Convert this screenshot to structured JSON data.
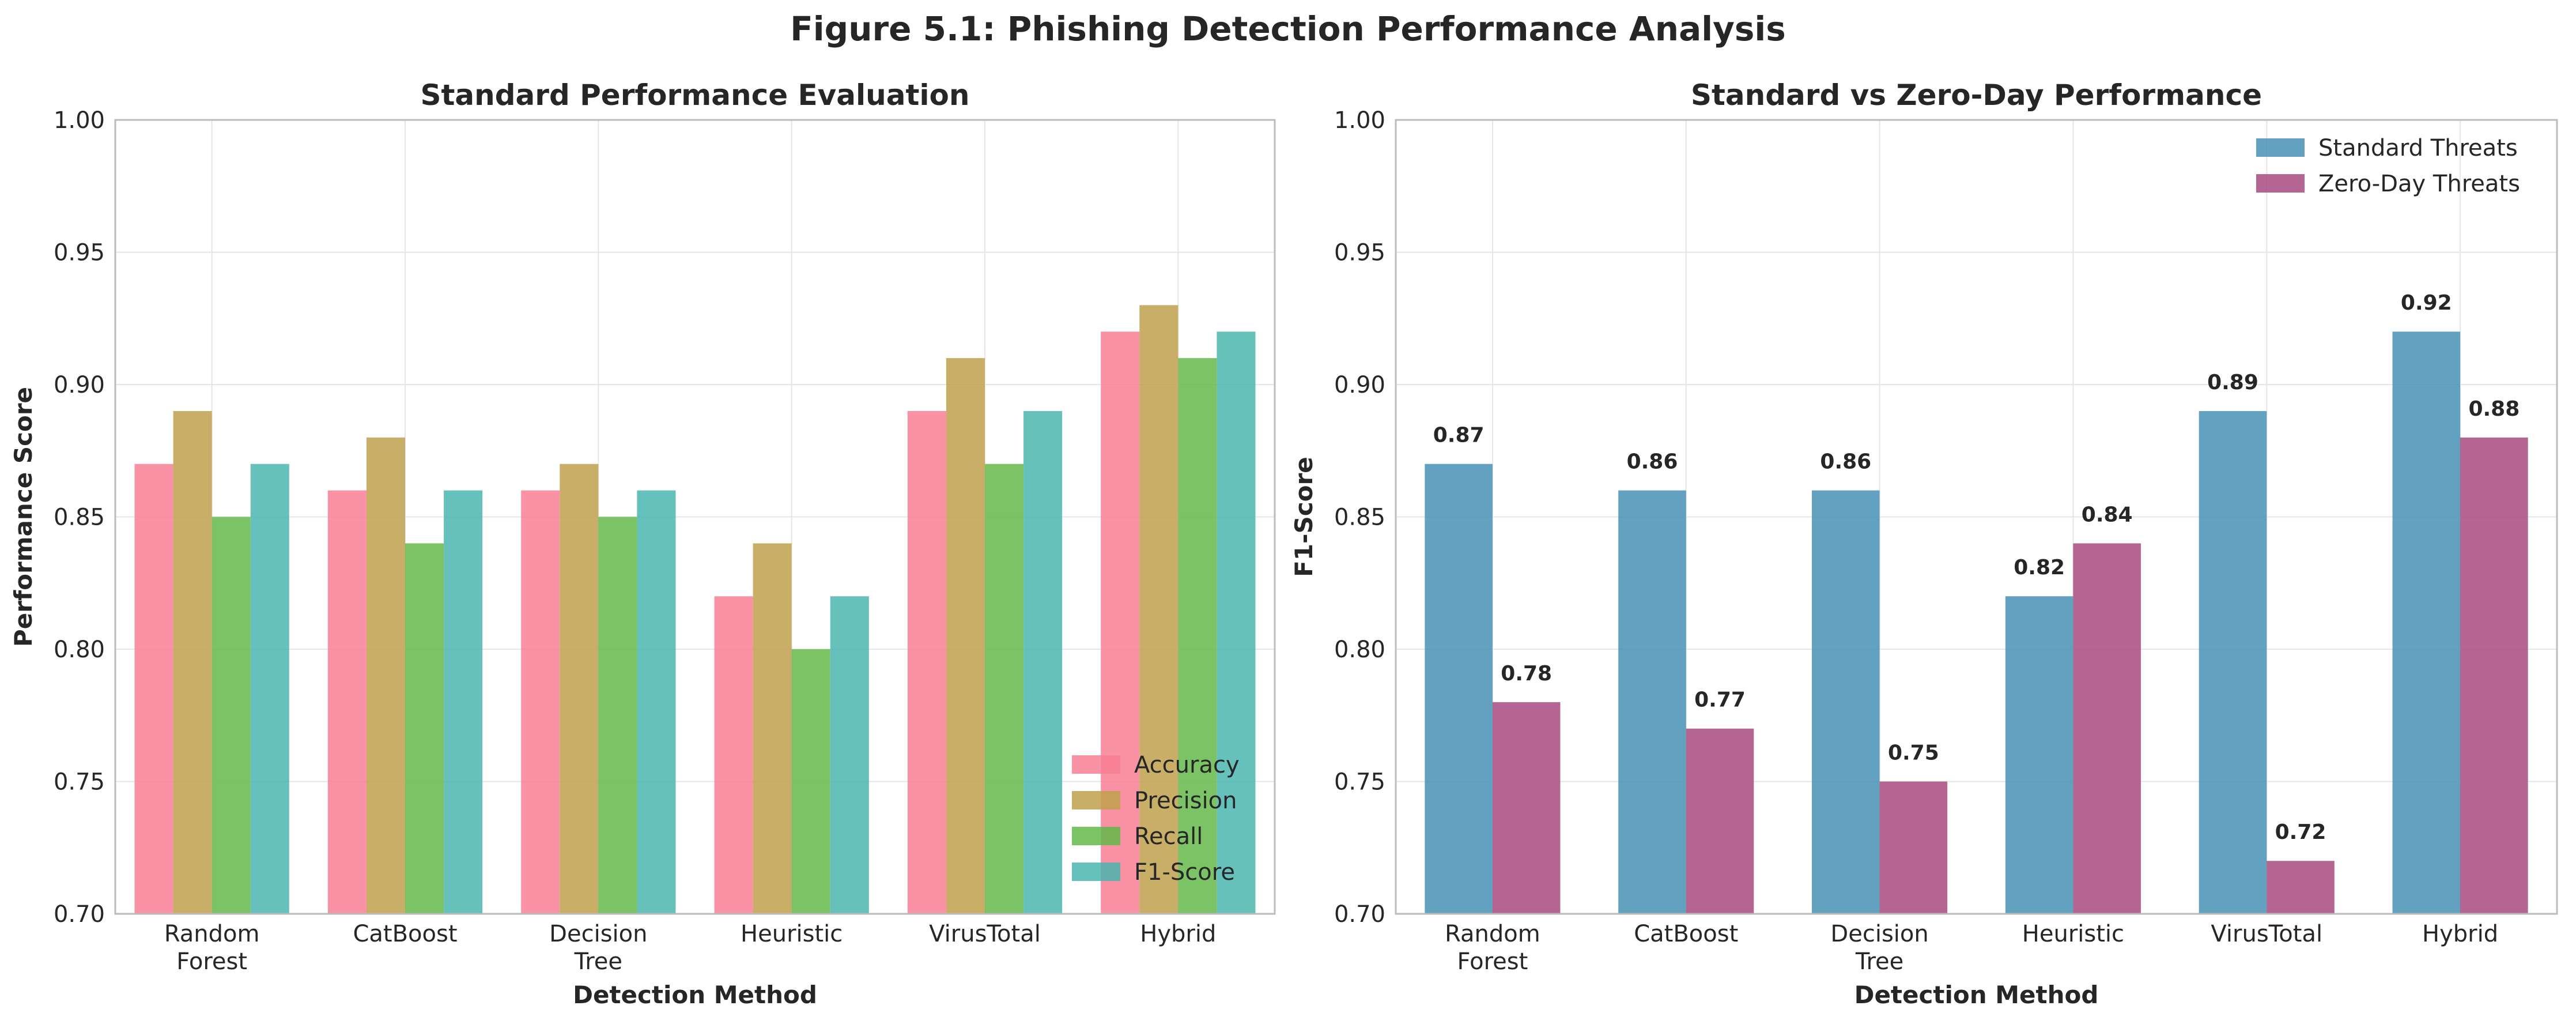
{
  "figure": {
    "title": "Figure 5.1: Phishing Detection Performance Analysis"
  },
  "chart_data": [
    {
      "type": "bar",
      "title": "Standard Performance Evaluation",
      "xlabel": "Detection Method",
      "ylabel": "Performance Score",
      "ylim": [
        0.7,
        1.0
      ],
      "yticks": [
        "0.70",
        "0.75",
        "0.80",
        "0.85",
        "0.90",
        "0.95",
        "1.00"
      ],
      "categories": [
        [
          "Random",
          "Forest"
        ],
        [
          "CatBoost"
        ],
        [
          "Decision",
          "Tree"
        ],
        [
          "Heuristic"
        ],
        [
          "VirusTotal"
        ],
        [
          "Hybrid"
        ]
      ],
      "series": [
        {
          "name": "Accuracy",
          "color": "#f77f94",
          "values": [
            0.87,
            0.86,
            0.86,
            0.82,
            0.89,
            0.92
          ]
        },
        {
          "name": "Precision",
          "color": "#c0a04c",
          "values": [
            0.89,
            0.88,
            0.87,
            0.84,
            0.91,
            0.93
          ]
        },
        {
          "name": "Recall",
          "color": "#64b94a",
          "values": [
            0.85,
            0.84,
            0.85,
            0.8,
            0.87,
            0.91
          ]
        },
        {
          "name": "F1-Score",
          "color": "#4bb5af",
          "values": [
            0.87,
            0.86,
            0.86,
            0.82,
            0.89,
            0.92
          ]
        }
      ],
      "grid": true,
      "legend": "lower-right",
      "data_labels": false
    },
    {
      "type": "bar",
      "title": "Standard vs Zero-Day Performance",
      "xlabel": "Detection Method",
      "ylabel": "F1-Score",
      "ylim": [
        0.7,
        1.0
      ],
      "yticks": [
        "0.70",
        "0.75",
        "0.80",
        "0.85",
        "0.90",
        "0.95",
        "1.00"
      ],
      "categories": [
        [
          "Random",
          "Forest"
        ],
        [
          "CatBoost"
        ],
        [
          "Decision",
          "Tree"
        ],
        [
          "Heuristic"
        ],
        [
          "VirusTotal"
        ],
        [
          "Hybrid"
        ]
      ],
      "series": [
        {
          "name": "Standard Threats",
          "color": "#4691b5",
          "values": [
            0.87,
            0.86,
            0.86,
            0.82,
            0.89,
            0.92
          ],
          "labels": [
            "0.87",
            "0.86",
            "0.86",
            "0.82",
            "0.89",
            "0.92"
          ]
        },
        {
          "name": "Zero-Day Threats",
          "color": "#a84a7f",
          "values": [
            0.78,
            0.77,
            0.75,
            0.84,
            0.72,
            0.88
          ],
          "labels": [
            "0.78",
            "0.77",
            "0.75",
            "0.84",
            "0.72",
            "0.88"
          ]
        }
      ],
      "grid": true,
      "legend": "upper-right",
      "data_labels": true
    }
  ]
}
